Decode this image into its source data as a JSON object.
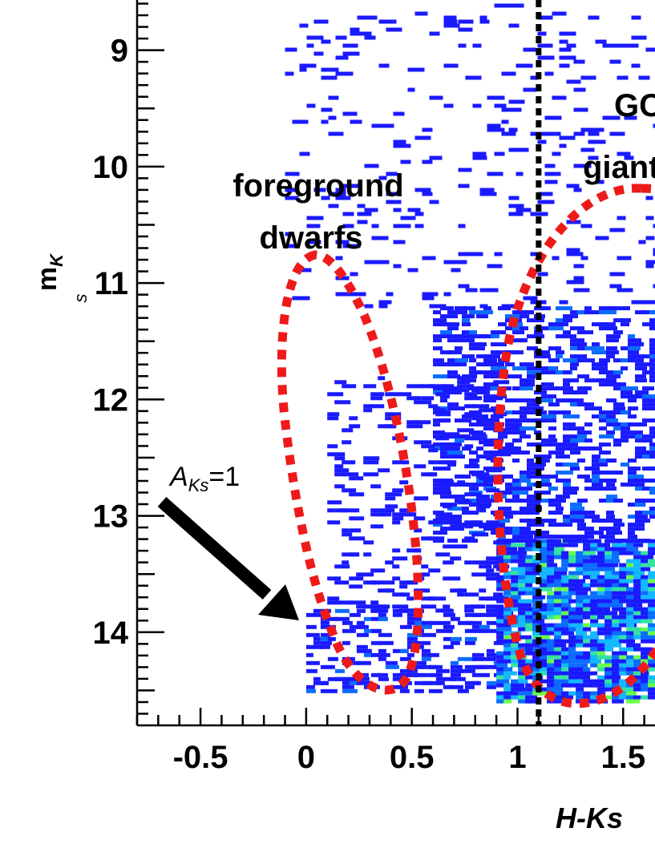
{
  "chart_data": {
    "type": "heatmap",
    "xlabel": "H-Ks",
    "ylabel": "m",
    "ylabel_sub1": "K",
    "ylabel_sub2": "s",
    "xlim": [
      -0.8,
      1.7
    ],
    "ylim": [
      8.5,
      14.8
    ],
    "y_inverted": true,
    "x_ticks": [
      -0.5,
      0,
      0.5,
      1,
      1.5
    ],
    "x_tick_labels": [
      "-0.5",
      "0",
      "0.5",
      "1",
      "1.5"
    ],
    "y_ticks": [
      9,
      10,
      11,
      12,
      13,
      14
    ],
    "y_tick_labels": [
      "9",
      "10",
      "11",
      "12",
      "13",
      "14"
    ],
    "grid": false,
    "divider_line_x": 1.1,
    "colorscale": [
      "#1a1aff",
      "#0a6cff",
      "#13b8ff",
      "#35e3a0",
      "#6bff4a"
    ],
    "density_regions": [
      {
        "x_range": [
          0.0,
          0.9
        ],
        "y_range": [
          13.8,
          14.5
        ],
        "level": 0.35
      },
      {
        "x_range": [
          0.9,
          1.7
        ],
        "y_range": [
          13.2,
          14.6
        ],
        "level": 0.8
      },
      {
        "x_range": [
          0.6,
          1.7
        ],
        "y_range": [
          11.2,
          13.2
        ],
        "level": 0.35
      },
      {
        "x_range": [
          0.1,
          0.9
        ],
        "y_range": [
          11.8,
          13.8
        ],
        "level": 0.18
      },
      {
        "x_range": [
          -0.1,
          1.7
        ],
        "y_range": [
          8.6,
          11.2
        ],
        "level": 0.06
      }
    ],
    "regions": [
      {
        "name": "foreground dwarfs",
        "label_lines": [
          "foreground",
          "dwarfs"
        ],
        "color": "#ee1a1a",
        "style": "dotted"
      },
      {
        "name": "GC giants",
        "label_lines": [
          "GC",
          "giants"
        ],
        "color": "#ee1a1a",
        "style": "dotted"
      }
    ],
    "annotations": [
      {
        "text_main": "A",
        "text_sub": "Ks",
        "text_tail": "=1",
        "type": "arrow"
      }
    ]
  }
}
